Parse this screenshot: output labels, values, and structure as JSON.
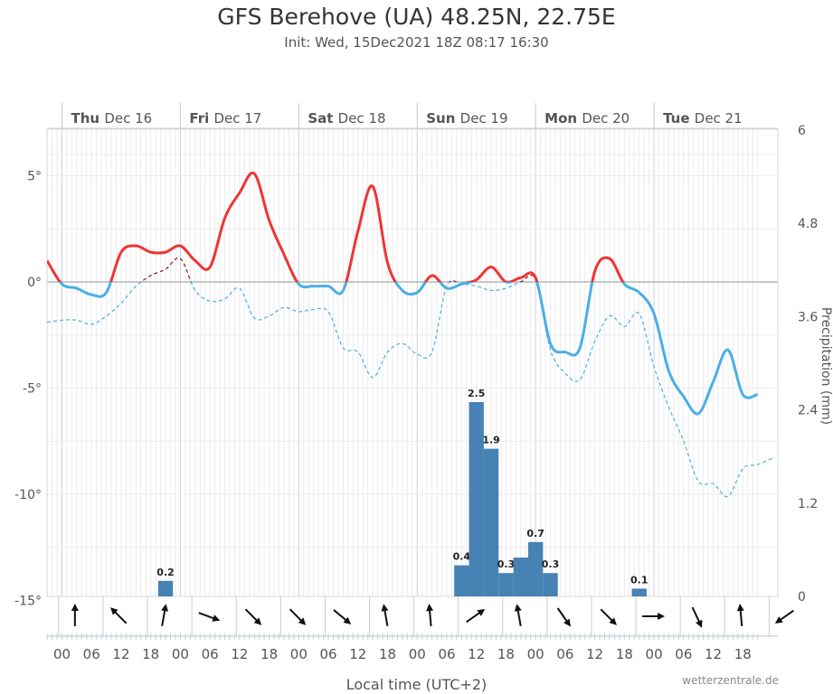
{
  "header": {
    "title": "GFS Berehove (UA) 48.25N, 22.75E",
    "subtitle": "Init: Wed, 15Dec2021 18Z 08:17 16:30"
  },
  "footer": {
    "credit": "wetterzentrale.de"
  },
  "chart_data": {
    "type": "line",
    "title": "GFS Berehove (UA) 48.25N, 22.75E",
    "subtitle": "Init: Wed, 15Dec2021 18Z 08:17 16:30",
    "xlabel": "Local time (UTC+2)",
    "ylabel_left": "",
    "ylabel_right": "Precipitation (mm)",
    "x_unit": "hours since Thu Dec 16 00:00 local",
    "xlim": [
      -3,
      141
    ],
    "ylim_left": [
      -15,
      7
    ],
    "ylim_right": [
      0,
      6
    ],
    "left_ticks": [
      {
        "v": 5,
        "label": "5°"
      },
      {
        "v": 0,
        "label": "0°"
      },
      {
        "v": -5,
        "label": "-5°"
      },
      {
        "v": -10,
        "label": "-10°"
      },
      {
        "v": -15,
        "label": "-15°"
      }
    ],
    "right_ticks": [
      {
        "v": 0,
        "label": "0"
      },
      {
        "v": 1.2,
        "label": "1.2"
      },
      {
        "v": 2.4,
        "label": "2.4"
      },
      {
        "v": 3.6,
        "label": "3.6"
      },
      {
        "v": 4.8,
        "label": "4.8"
      },
      {
        "v": 6,
        "label": "6"
      }
    ],
    "hour_ticks": [
      "00",
      "06",
      "12",
      "18",
      "00",
      "06",
      "12",
      "18",
      "00",
      "06",
      "12",
      "18",
      "00",
      "06",
      "12",
      "18",
      "00",
      "06",
      "12",
      "18",
      "00",
      "06",
      "12",
      "18"
    ],
    "day_labels": [
      {
        "dow": "Thu",
        "date": "Dec 16"
      },
      {
        "dow": "Fri",
        "date": "Dec 17"
      },
      {
        "dow": "Sat",
        "date": "Dec 18"
      },
      {
        "dow": "Sun",
        "date": "Dec 19"
      },
      {
        "dow": "Mon",
        "date": "Dec 20"
      },
      {
        "dow": "Tue",
        "date": "Dec 21"
      }
    ],
    "series": [
      {
        "name": "Temperature (2m)",
        "colors": {
          "above_zero": "#f03434",
          "below_zero": "#4aaee6"
        },
        "points": [
          [
            -3,
            1.0
          ],
          [
            0,
            -0.1
          ],
          [
            3,
            -0.3
          ],
          [
            6,
            -0.6
          ],
          [
            9,
            -0.5
          ],
          [
            12,
            1.4
          ],
          [
            15,
            1.7
          ],
          [
            18,
            1.4
          ],
          [
            21,
            1.4
          ],
          [
            24,
            1.7
          ],
          [
            27,
            1.0
          ],
          [
            30,
            0.7
          ],
          [
            33,
            3.0
          ],
          [
            36,
            4.2
          ],
          [
            39,
            5.1
          ],
          [
            42,
            2.9
          ],
          [
            45,
            1.3
          ],
          [
            48,
            -0.1
          ],
          [
            51,
            -0.2
          ],
          [
            54,
            -0.2
          ],
          [
            57,
            -0.4
          ],
          [
            60,
            2.4
          ],
          [
            63,
            4.5
          ],
          [
            66,
            0.9
          ],
          [
            69,
            -0.4
          ],
          [
            72,
            -0.5
          ],
          [
            75,
            0.3
          ],
          [
            78,
            -0.3
          ],
          [
            81,
            -0.1
          ],
          [
            84,
            0.1
          ],
          [
            87,
            0.7
          ],
          [
            90,
            0.0
          ],
          [
            93,
            0.2
          ],
          [
            96,
            0.2
          ],
          [
            99,
            -2.9
          ],
          [
            102,
            -3.3
          ],
          [
            105,
            -3.1
          ],
          [
            108,
            0.5
          ],
          [
            111,
            1.1
          ],
          [
            114,
            -0.1
          ],
          [
            117,
            -0.5
          ],
          [
            120,
            -1.5
          ],
          [
            123,
            -4.2
          ],
          [
            126,
            -5.4
          ],
          [
            129,
            -6.2
          ],
          [
            132,
            -4.7
          ],
          [
            135,
            -3.2
          ],
          [
            138,
            -5.3
          ],
          [
            141,
            -5.3
          ]
        ]
      },
      {
        "name": "Dew point",
        "color": "#4aaee6",
        "color_above_zero": "#8a1a1a",
        "points": [
          [
            -3,
            -1.9
          ],
          [
            0,
            -1.8
          ],
          [
            3,
            -1.8
          ],
          [
            6,
            -2.0
          ],
          [
            9,
            -1.6
          ],
          [
            12,
            -1.0
          ],
          [
            15,
            -0.2
          ],
          [
            18,
            0.3
          ],
          [
            21,
            0.6
          ],
          [
            24,
            1.1
          ],
          [
            27,
            -0.4
          ],
          [
            30,
            -0.9
          ],
          [
            33,
            -0.8
          ],
          [
            36,
            -0.3
          ],
          [
            39,
            -1.7
          ],
          [
            42,
            -1.6
          ],
          [
            45,
            -1.2
          ],
          [
            48,
            -1.4
          ],
          [
            51,
            -1.3
          ],
          [
            54,
            -1.4
          ],
          [
            57,
            -3.1
          ],
          [
            60,
            -3.3
          ],
          [
            63,
            -4.5
          ],
          [
            66,
            -3.3
          ],
          [
            69,
            -2.9
          ],
          [
            72,
            -3.4
          ],
          [
            75,
            -3.3
          ],
          [
            78,
            -0.2
          ],
          [
            81,
            -0.1
          ],
          [
            84,
            -0.2
          ],
          [
            87,
            -0.4
          ],
          [
            90,
            -0.3
          ],
          [
            93,
            0.0
          ],
          [
            96,
            0.1
          ],
          [
            99,
            -3.2
          ],
          [
            102,
            -4.3
          ],
          [
            105,
            -4.6
          ],
          [
            108,
            -2.8
          ],
          [
            111,
            -1.6
          ],
          [
            114,
            -2.1
          ],
          [
            117,
            -1.5
          ],
          [
            120,
            -4.0
          ],
          [
            123,
            -5.9
          ],
          [
            126,
            -7.5
          ],
          [
            129,
            -9.4
          ],
          [
            132,
            -9.5
          ],
          [
            135,
            -10.1
          ],
          [
            138,
            -8.8
          ],
          [
            141,
            -8.6
          ],
          [
            144,
            -8.3
          ]
        ]
      },
      {
        "name": "Precipitation (mm / 3h)",
        "type": "bar",
        "color": "#4682b4",
        "bars": [
          {
            "x": 21,
            "value": 0.2,
            "label": "0.2"
          },
          {
            "x": 81,
            "value": 0.4,
            "label": "0.4"
          },
          {
            "x": 84,
            "value": 2.5,
            "label": "2.5"
          },
          {
            "x": 87,
            "value": 1.9,
            "label": "1.9"
          },
          {
            "x": 90,
            "value": 0.3,
            "label": "0.3"
          },
          {
            "x": 93,
            "value": 0.5,
            "label": ""
          },
          {
            "x": 96,
            "value": 0.7,
            "label": "0.7"
          },
          {
            "x": 99,
            "value": 0.3,
            "label": "0.3"
          },
          {
            "x": 117,
            "value": 0.1,
            "label": "0.1"
          }
        ]
      }
    ],
    "wind_arrows_deg": [
      180,
      135,
      190,
      290,
      315,
      315,
      310,
      170,
      175,
      235,
      170,
      325,
      315,
      270,
      335,
      175,
      55
    ]
  }
}
